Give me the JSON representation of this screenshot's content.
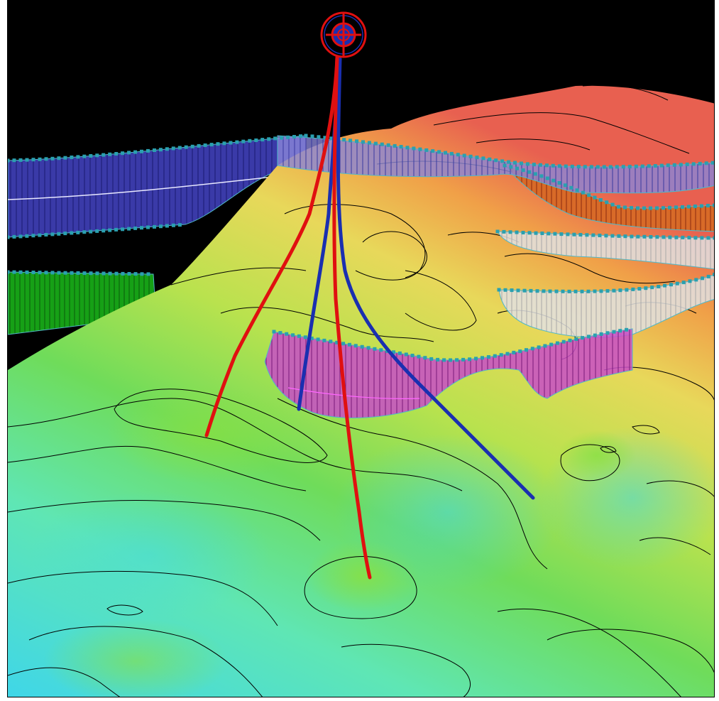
{
  "scene": {
    "background_color": "#000000",
    "surface_color_ramp": [
      "#3fd6e8",
      "#5fe6b4",
      "#6fdc5a",
      "#b9e24e",
      "#e8d85a",
      "#f0a048",
      "#e86050"
    ],
    "contour_color": "#000000",
    "well_colors": {
      "primary": "#e01010",
      "secondary": "#1a2fb0"
    },
    "fault_panels": [
      {
        "name": "blue-fault",
        "color": "#3a3aa8"
      },
      {
        "name": "green-fault",
        "color": "#16a016"
      },
      {
        "name": "orange-fault",
        "color": "#d86a28"
      },
      {
        "name": "white-fault-upper",
        "color": "#d8d8d8"
      },
      {
        "name": "white-fault-lower",
        "color": "#e6e6e6"
      },
      {
        "name": "magenta-fault",
        "color": "#c84cc8"
      }
    ],
    "marker_icon": "well-head-crosshair-icon",
    "node_color": "#2aa0b0"
  }
}
